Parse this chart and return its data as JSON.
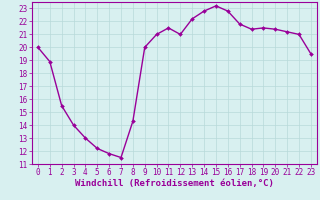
{
  "hours": [
    0,
    1,
    2,
    3,
    4,
    5,
    6,
    7,
    8,
    9,
    10,
    11,
    12,
    13,
    14,
    15,
    16,
    17,
    18,
    19,
    20,
    21,
    22,
    23
  ],
  "values": [
    20.0,
    18.9,
    15.5,
    14.0,
    13.0,
    12.2,
    11.8,
    11.5,
    14.3,
    20.0,
    21.0,
    21.5,
    21.0,
    22.2,
    22.8,
    23.2,
    22.8,
    21.8,
    21.4,
    21.5,
    21.4,
    21.2,
    21.0,
    19.5
  ],
  "line_color": "#990099",
  "marker": "D",
  "marker_size": 2,
  "bg_color": "#d8f0f0",
  "grid_color": "#b8dada",
  "spine_color": "#990099",
  "xlabel": "Windchill (Refroidissement éolien,°C)",
  "xlabel_color": "#990099",
  "ylim": [
    11,
    23.5
  ],
  "xlim": [
    -0.5,
    23.5
  ],
  "yticks": [
    11,
    12,
    13,
    14,
    15,
    16,
    17,
    18,
    19,
    20,
    21,
    22,
    23
  ],
  "xticks": [
    0,
    1,
    2,
    3,
    4,
    5,
    6,
    7,
    8,
    9,
    10,
    11,
    12,
    13,
    14,
    15,
    16,
    17,
    18,
    19,
    20,
    21,
    22,
    23
  ],
  "tick_color": "#990099",
  "tick_fontsize": 5.5,
  "xlabel_fontsize": 6.5,
  "linewidth": 1.0
}
